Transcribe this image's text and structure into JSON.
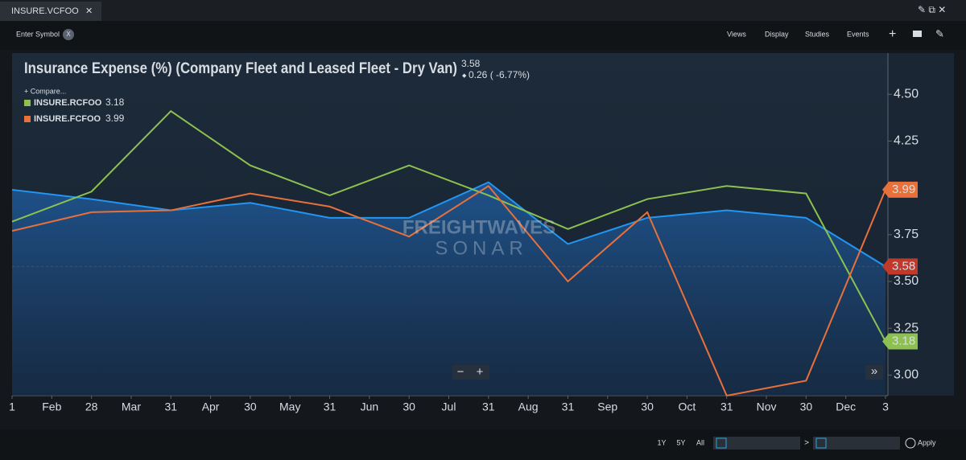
{
  "ui": {
    "tab": "INSURE.VCFOO",
    "tab_close": "✕",
    "symbol_placeholder": "Enter Symbol",
    "symbol_clear": "X",
    "menus": [
      "Views",
      "Display",
      "Studies",
      "Events"
    ],
    "compare": "+ Compare...",
    "change": "0.26 ( -6.77%)",
    "watermark_top": "FREIGHTWAVES",
    "watermark_bottom": "SONAR",
    "zoom_out": "−",
    "zoom_in": "+",
    "scroll": "»",
    "ranges": [
      "1Y",
      "5Y",
      "All"
    ],
    "range_arrow": ">",
    "apply": "Apply"
  },
  "chart_data": {
    "type": "line",
    "title": "Insurance Expense (%) (Company Fleet and Leased Fleet - Dry Van)",
    "x": [
      0,
      2,
      4,
      6,
      8,
      10,
      12,
      14,
      16,
      18,
      20,
      22
    ],
    "xlim": [
      0,
      22
    ],
    "xticks": [
      {
        "value": 0,
        "label": "1"
      },
      {
        "value": 1,
        "label": "Feb"
      },
      {
        "value": 2,
        "label": "28"
      },
      {
        "value": 3,
        "label": "Mar"
      },
      {
        "value": 4,
        "label": "31"
      },
      {
        "value": 5,
        "label": "Apr"
      },
      {
        "value": 6,
        "label": "30"
      },
      {
        "value": 7,
        "label": "May"
      },
      {
        "value": 8,
        "label": "31"
      },
      {
        "value": 9,
        "label": "Jun"
      },
      {
        "value": 10,
        "label": "30"
      },
      {
        "value": 11,
        "label": "Jul"
      },
      {
        "value": 12,
        "label": "31"
      },
      {
        "value": 13,
        "label": "Aug"
      },
      {
        "value": 14,
        "label": "31"
      },
      {
        "value": 15,
        "label": "Sep"
      },
      {
        "value": 16,
        "label": "30"
      },
      {
        "value": 17,
        "label": "Oct"
      },
      {
        "value": 18,
        "label": "31"
      },
      {
        "value": 19,
        "label": "Nov"
      },
      {
        "value": 20,
        "label": "30"
      },
      {
        "value": 21,
        "label": "Dec"
      },
      {
        "value": 22,
        "label": "3"
      }
    ],
    "ylim": [
      2.89,
      4.72
    ],
    "yticks": [
      {
        "value": 3,
        "label": "3.00"
      },
      3.25,
      {
        "value": 3.5,
        "label": "3.50"
      },
      3.75,
      4.25,
      {
        "value": 4.5,
        "label": "4.50"
      }
    ],
    "grid": false,
    "series": [
      {
        "name": "INSURE.VCFOO",
        "color": "#2196f3",
        "tag_color": "#c0392b",
        "values": [
          3.99,
          3.94,
          3.88,
          3.92,
          3.84,
          3.84,
          4.03,
          3.7,
          3.84,
          3.88,
          3.84,
          3.58
        ]
      },
      {
        "name": "INSURE.RCFOO",
        "color": "#8cc152",
        "values": [
          3.82,
          3.98,
          4.41,
          4.12,
          3.96,
          4.12,
          3.96,
          3.78,
          3.94,
          4.01,
          3.97,
          3.18
        ]
      },
      {
        "name": "INSURE.FCFOO",
        "color": "#e8703a",
        "values": [
          3.77,
          3.87,
          3.88,
          3.97,
          3.9,
          3.74,
          4.01,
          3.5,
          3.87,
          2.89,
          2.97,
          3.99
        ]
      }
    ]
  }
}
